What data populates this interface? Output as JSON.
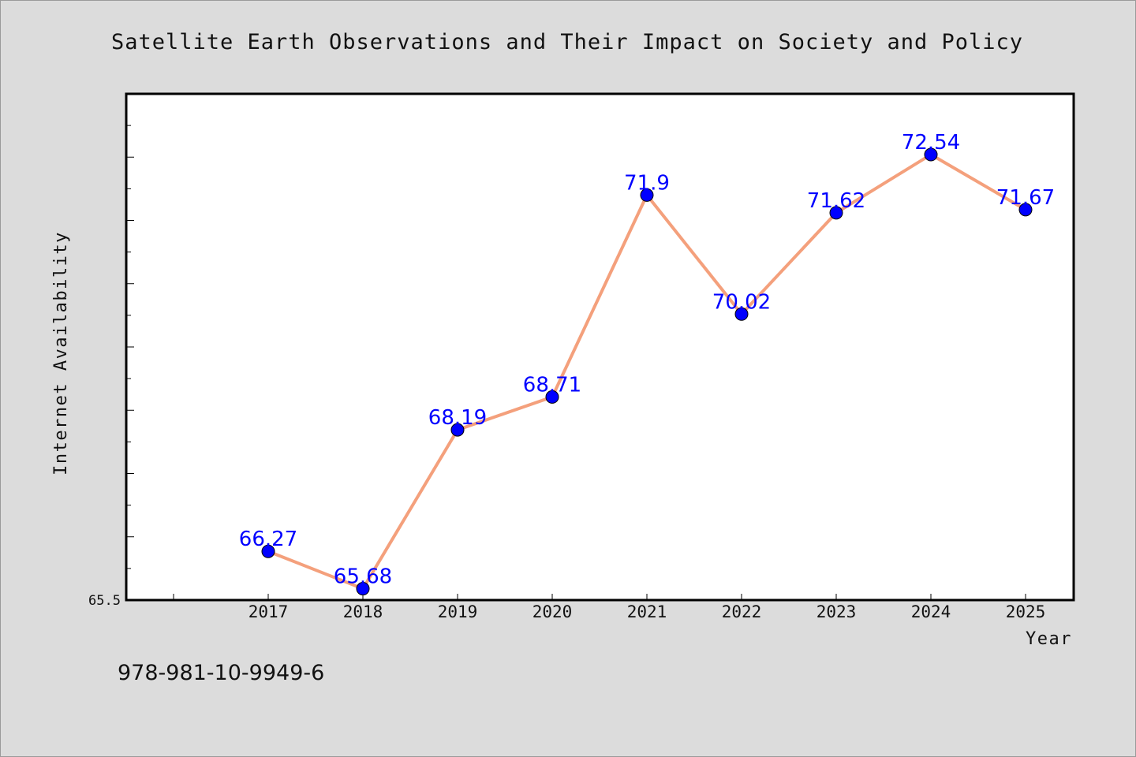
{
  "chart_data": {
    "type": "line",
    "title": "Satellite Earth Observations and Their Impact on Society and Policy",
    "xlabel": "Year",
    "ylabel": "Internet Availability",
    "categories": [
      "2017",
      "2018",
      "2019",
      "2020",
      "2021",
      "2022",
      "2023",
      "2024",
      "2025"
    ],
    "series": [
      {
        "values": [
          66.27,
          65.68,
          68.19,
          68.71,
          71.9,
          70.02,
          71.62,
          72.54,
          71.67
        ],
        "labels": [
          "66.27",
          "65.68",
          "68.19",
          "68.71",
          "71.9",
          "70.02",
          "71.62",
          "72.54",
          "71.67"
        ]
      }
    ],
    "y_tick_labels": [
      "65.5"
    ],
    "ylim": [
      65.5,
      73.5
    ],
    "grid": false,
    "line_color": "#f4a07c",
    "marker_color": "#0000ff",
    "label_color": "#0000ff"
  },
  "footer": {
    "isbn": "978-981-10-9949-6"
  }
}
